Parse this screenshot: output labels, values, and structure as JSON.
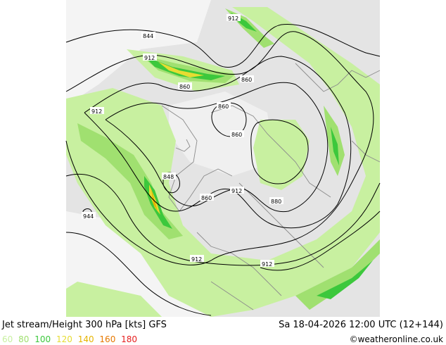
{
  "title": "Jet stream/Height 300 hPa [kts] GFS",
  "valid_time": "Sa 18-04-2026 12:00 UTC (12+144)",
  "credit": "©weatheronline.co.uk",
  "legend": [
    {
      "label": "60",
      "color": "#c8f0a0"
    },
    {
      "label": "80",
      "color": "#a0e070"
    },
    {
      "label": "100",
      "color": "#3cc83c"
    },
    {
      "label": "120",
      "color": "#e6dc32"
    },
    {
      "label": "140",
      "color": "#e6b400"
    },
    {
      "label": "160",
      "color": "#e67800"
    },
    {
      "label": "180",
      "color": "#e61e1e"
    }
  ],
  "contour_labels": {
    "l912_top": "912",
    "l844_tl": "844",
    "l912_a": "912",
    "l860_a": "860",
    "l860_b": "860",
    "l860_c": "860",
    "l912_left": "912",
    "l860_d": "860",
    "l848": "848",
    "l860_e": "860",
    "l912_c": "912",
    "l880": "880",
    "l944": "944",
    "l912_bot": "912",
    "l912_br": "912"
  },
  "colors": {
    "land": "#e8e8e8",
    "ocean": "#ffffff",
    "coast": "#8c8c8c",
    "contour": "#000000"
  }
}
